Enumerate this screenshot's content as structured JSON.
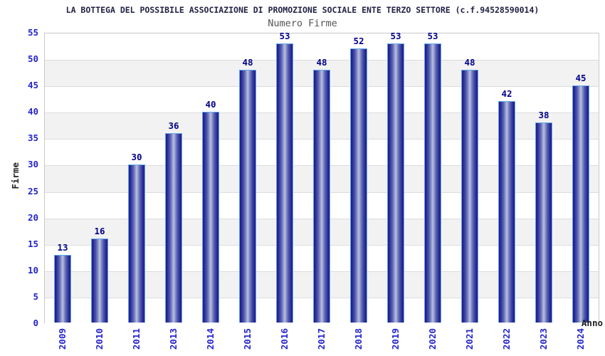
{
  "chart_data": {
    "type": "bar",
    "title": "LA BOTTEGA DEL POSSIBILE ASSOCIAZIONE DI PROMOZIONE SOCIALE ENTE TERZO SETTORE (c.f.94528590014)",
    "subtitle": "Numero Firme",
    "categories": [
      "2009",
      "2010",
      "2011",
      "2013",
      "2014",
      "2015",
      "2016",
      "2017",
      "2018",
      "2019",
      "2020",
      "2021",
      "2022",
      "2023",
      "2024"
    ],
    "values": [
      13,
      16,
      30,
      36,
      40,
      48,
      53,
      48,
      52,
      53,
      53,
      48,
      42,
      38,
      45
    ],
    "xlabel": "Anno",
    "ylabel": "Firme",
    "ylim": [
      0,
      55
    ],
    "yticks": [
      0,
      5,
      10,
      15,
      20,
      25,
      30,
      35,
      40,
      45,
      50,
      55
    ],
    "grid": "horizontal alternating bands",
    "legend": "none"
  },
  "colors": {
    "title": "#222244",
    "subtitle": "#555555",
    "tick_label": "#2323cd",
    "value_label": "#00008b",
    "bar_edge_dark": "#1c1c86",
    "bar_center_light": "#bcc2e2",
    "bar_border": "#64a8e8",
    "band_light": "#ffffff",
    "band_dark": "#f2f2f2",
    "grid_line": "#dcdcdc",
    "plot_border": "#c9c9c9"
  }
}
